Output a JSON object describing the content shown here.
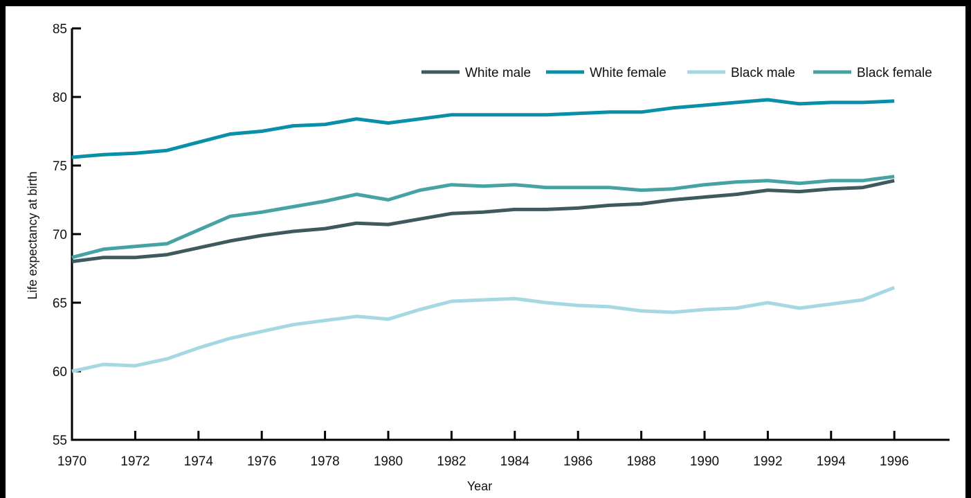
{
  "chart_data": {
    "type": "line",
    "title": "",
    "xlabel": "Year",
    "ylabel": "Life expectancy at birth",
    "xlim": [
      1970,
      1998
    ],
    "ylim": [
      55,
      85
    ],
    "x_ticks": [
      1970,
      1972,
      1974,
      1976,
      1978,
      1980,
      1982,
      1984,
      1986,
      1988,
      1990,
      1992,
      1994,
      1996
    ],
    "x_tick_labels": [
      "1970",
      "1972",
      "1974",
      "1976",
      "1978",
      "1980",
      "1982",
      "1984",
      "1986",
      "1988",
      "1990",
      "1992",
      "1994",
      "1996"
    ],
    "y_ticks": [
      55,
      60,
      65,
      70,
      75,
      80,
      85
    ],
    "y_tick_labels": [
      "55",
      "60",
      "65",
      "70",
      "75",
      "80",
      "85"
    ],
    "grid": false,
    "legend_position": "top-right",
    "x": [
      1970,
      1971,
      1972,
      1973,
      1974,
      1975,
      1976,
      1977,
      1978,
      1979,
      1980,
      1981,
      1982,
      1983,
      1984,
      1985,
      1986,
      1987,
      1988,
      1989,
      1990,
      1991,
      1992,
      1993,
      1994,
      1995,
      1996
    ],
    "series": [
      {
        "name": "White male",
        "color": "#3f5a5e",
        "values": [
          68.0,
          68.3,
          68.3,
          68.5,
          69.0,
          69.5,
          69.9,
          70.2,
          70.4,
          70.8,
          70.7,
          71.1,
          71.5,
          71.6,
          71.8,
          71.8,
          71.9,
          72.1,
          72.2,
          72.5,
          72.7,
          72.9,
          73.2,
          73.1,
          73.3,
          73.4,
          73.9
        ]
      },
      {
        "name": "White female",
        "color": "#0a8fa8",
        "values": [
          75.6,
          75.8,
          75.9,
          76.1,
          76.7,
          77.3,
          77.5,
          77.9,
          78.0,
          78.4,
          78.1,
          78.4,
          78.7,
          78.7,
          78.7,
          78.7,
          78.8,
          78.9,
          78.9,
          79.2,
          79.4,
          79.6,
          79.8,
          79.5,
          79.6,
          79.6,
          79.7
        ]
      },
      {
        "name": "Black male",
        "color": "#a6d8e3",
        "values": [
          60.0,
          60.5,
          60.4,
          60.9,
          61.7,
          62.4,
          62.9,
          63.4,
          63.7,
          64.0,
          63.8,
          64.5,
          65.1,
          65.2,
          65.3,
          65.0,
          64.8,
          64.7,
          64.4,
          64.3,
          64.5,
          64.6,
          65.0,
          64.6,
          64.9,
          65.2,
          66.1
        ]
      },
      {
        "name": "Black female",
        "color": "#47a3a3",
        "values": [
          68.3,
          68.9,
          69.1,
          69.3,
          70.3,
          71.3,
          71.6,
          72.0,
          72.4,
          72.9,
          72.5,
          73.2,
          73.6,
          73.5,
          73.6,
          73.4,
          73.4,
          73.4,
          73.2,
          73.3,
          73.6,
          73.8,
          73.9,
          73.7,
          73.9,
          73.9,
          74.2
        ]
      }
    ]
  }
}
